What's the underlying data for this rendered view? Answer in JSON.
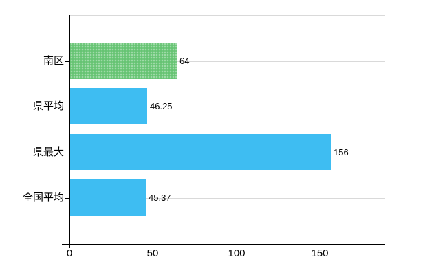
{
  "chart_data": {
    "type": "bar",
    "orientation": "horizontal",
    "title": "",
    "xlabel": "",
    "ylabel": "",
    "categories": [
      "南区",
      "県平均",
      "県最大",
      "全国平均"
    ],
    "values": [
      64,
      46.25,
      156,
      45.37
    ],
    "value_labels": [
      "64",
      "46.25",
      "156",
      "45.37"
    ],
    "bar_colors": [
      "#66C473",
      "#3EBDF2",
      "#3EBDF2",
      "#3EBDF2"
    ],
    "bar_patterns": [
      "dots",
      "solid",
      "solid",
      "solid"
    ],
    "x_ticks": [
      0,
      50,
      100,
      150
    ],
    "x_tick_labels": [
      "0",
      "50",
      "100",
      "150"
    ],
    "xlim": [
      0,
      189
    ],
    "grid": true,
    "legend_position": "none"
  },
  "colors": {
    "background": "#ffffff",
    "gridline": "#d9d9d9",
    "axis": "#000000",
    "text": "#000000",
    "green_bar": "#66C473",
    "blue_bar": "#3EBDF2"
  }
}
